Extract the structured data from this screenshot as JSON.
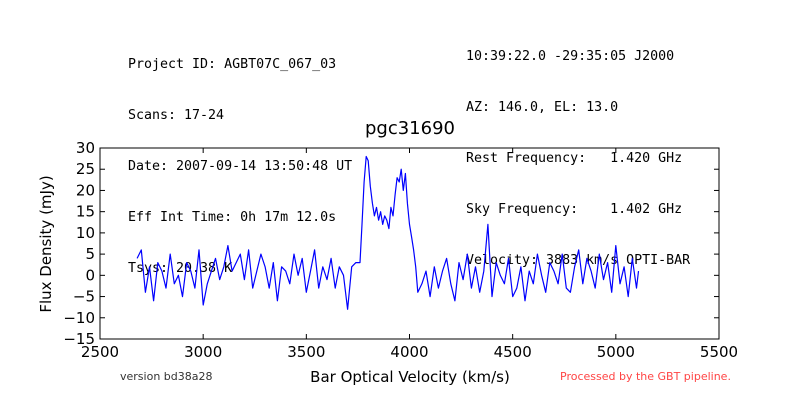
{
  "header_left": [
    "Project ID: AGBT07C_067_03",
    "Scans: 17-24",
    "Date: 2007-09-14 13:50:48 UT",
    "Eff Int Time: 0h 17m 12.0s",
    "Tsys: 20.38 K"
  ],
  "header_right": [
    "10:39:22.0 -29:35:05 J2000",
    "AZ: 146.0, EL: 13.0",
    "Rest Frequency:   1.420 GHz",
    "Sky Frequency:    1.402 GHz",
    "Velocity: 3883 km/s OPTI-BAR"
  ],
  "footer": {
    "version": "version bd38a28",
    "processed": "Processed by the GBT pipeline."
  },
  "colors": {
    "line": "#0000ff",
    "processed": "#ff4444"
  },
  "chart_data": {
    "type": "line",
    "title": "pgc31690",
    "xlabel": "Bar Optical Velocity (km/s)",
    "ylabel": "Flux Density (mJy)",
    "xlim": [
      2500,
      5500
    ],
    "ylim": [
      -15,
      30
    ],
    "xticks": [
      2500,
      3000,
      3500,
      4000,
      4500,
      5000,
      5500
    ],
    "yticks": [
      -15,
      -10,
      -5,
      0,
      5,
      10,
      15,
      20,
      25,
      30
    ],
    "grid": false,
    "series": [
      {
        "x": [
          2680,
          2700,
          2720,
          2740,
          2760,
          2780,
          2800,
          2820,
          2840,
          2860,
          2880,
          2900,
          2920,
          2940,
          2960,
          2980,
          3000,
          3020,
          3040,
          3060,
          3080,
          3100,
          3120,
          3140,
          3160,
          3180,
          3200,
          3220,
          3240,
          3260,
          3280,
          3300,
          3320,
          3340,
          3360,
          3380,
          3400,
          3420,
          3440,
          3460,
          3480,
          3500,
          3520,
          3540,
          3560,
          3580,
          3600,
          3620,
          3640,
          3660,
          3680,
          3700,
          3720,
          3740,
          3760,
          3770,
          3780,
          3790,
          3800,
          3810,
          3820,
          3830,
          3840,
          3850,
          3860,
          3870,
          3880,
          3890,
          3900,
          3910,
          3920,
          3930,
          3940,
          3950,
          3960,
          3970,
          3980,
          3990,
          4000,
          4010,
          4020,
          4030,
          4040,
          4060,
          4080,
          4100,
          4120,
          4140,
          4160,
          4180,
          4200,
          4220,
          4240,
          4260,
          4280,
          4300,
          4320,
          4340,
          4360,
          4380,
          4400,
          4420,
          4440,
          4460,
          4480,
          4500,
          4520,
          4540,
          4560,
          4580,
          4600,
          4620,
          4640,
          4660,
          4680,
          4700,
          4720,
          4740,
          4760,
          4780,
          4800,
          4820,
          4840,
          4860,
          4880,
          4900,
          4920,
          4940,
          4960,
          4980,
          5000,
          5020,
          5040,
          5060,
          5080,
          5100,
          5110
        ],
        "y": [
          4,
          6,
          -4,
          2,
          -6,
          3,
          1,
          -3,
          5,
          -2,
          0,
          -5,
          3,
          1,
          -3,
          6,
          -7,
          -2,
          1,
          4,
          -1,
          2,
          7,
          1,
          3,
          5,
          -1,
          6,
          -3,
          1,
          5,
          2,
          -3,
          3,
          -6,
          2,
          1,
          -2,
          5,
          0,
          4,
          -4,
          1,
          6,
          -3,
          2,
          -1,
          4,
          -3,
          2,
          0,
          -8,
          2,
          3,
          3,
          12,
          22,
          28,
          27,
          21,
          17,
          14,
          16,
          13,
          15,
          12,
          14,
          13,
          11,
          16,
          14,
          19,
          23,
          22,
          25,
          20,
          24,
          17,
          12,
          9,
          6,
          2,
          -4,
          -2,
          1,
          -5,
          2,
          -3,
          1,
          4,
          -2,
          -6,
          3,
          -1,
          5,
          -3,
          2,
          -4,
          1,
          12,
          -5,
          3,
          0,
          -2,
          4,
          -5,
          -3,
          2,
          -6,
          1,
          -2,
          5,
          0,
          -4,
          3,
          1,
          -2,
          5,
          -3,
          -4,
          2,
          6,
          -2,
          4,
          1,
          -3,
          5,
          -1,
          3,
          -4,
          7,
          -2,
          2,
          -5,
          4,
          -3,
          1
        ]
      }
    ]
  }
}
